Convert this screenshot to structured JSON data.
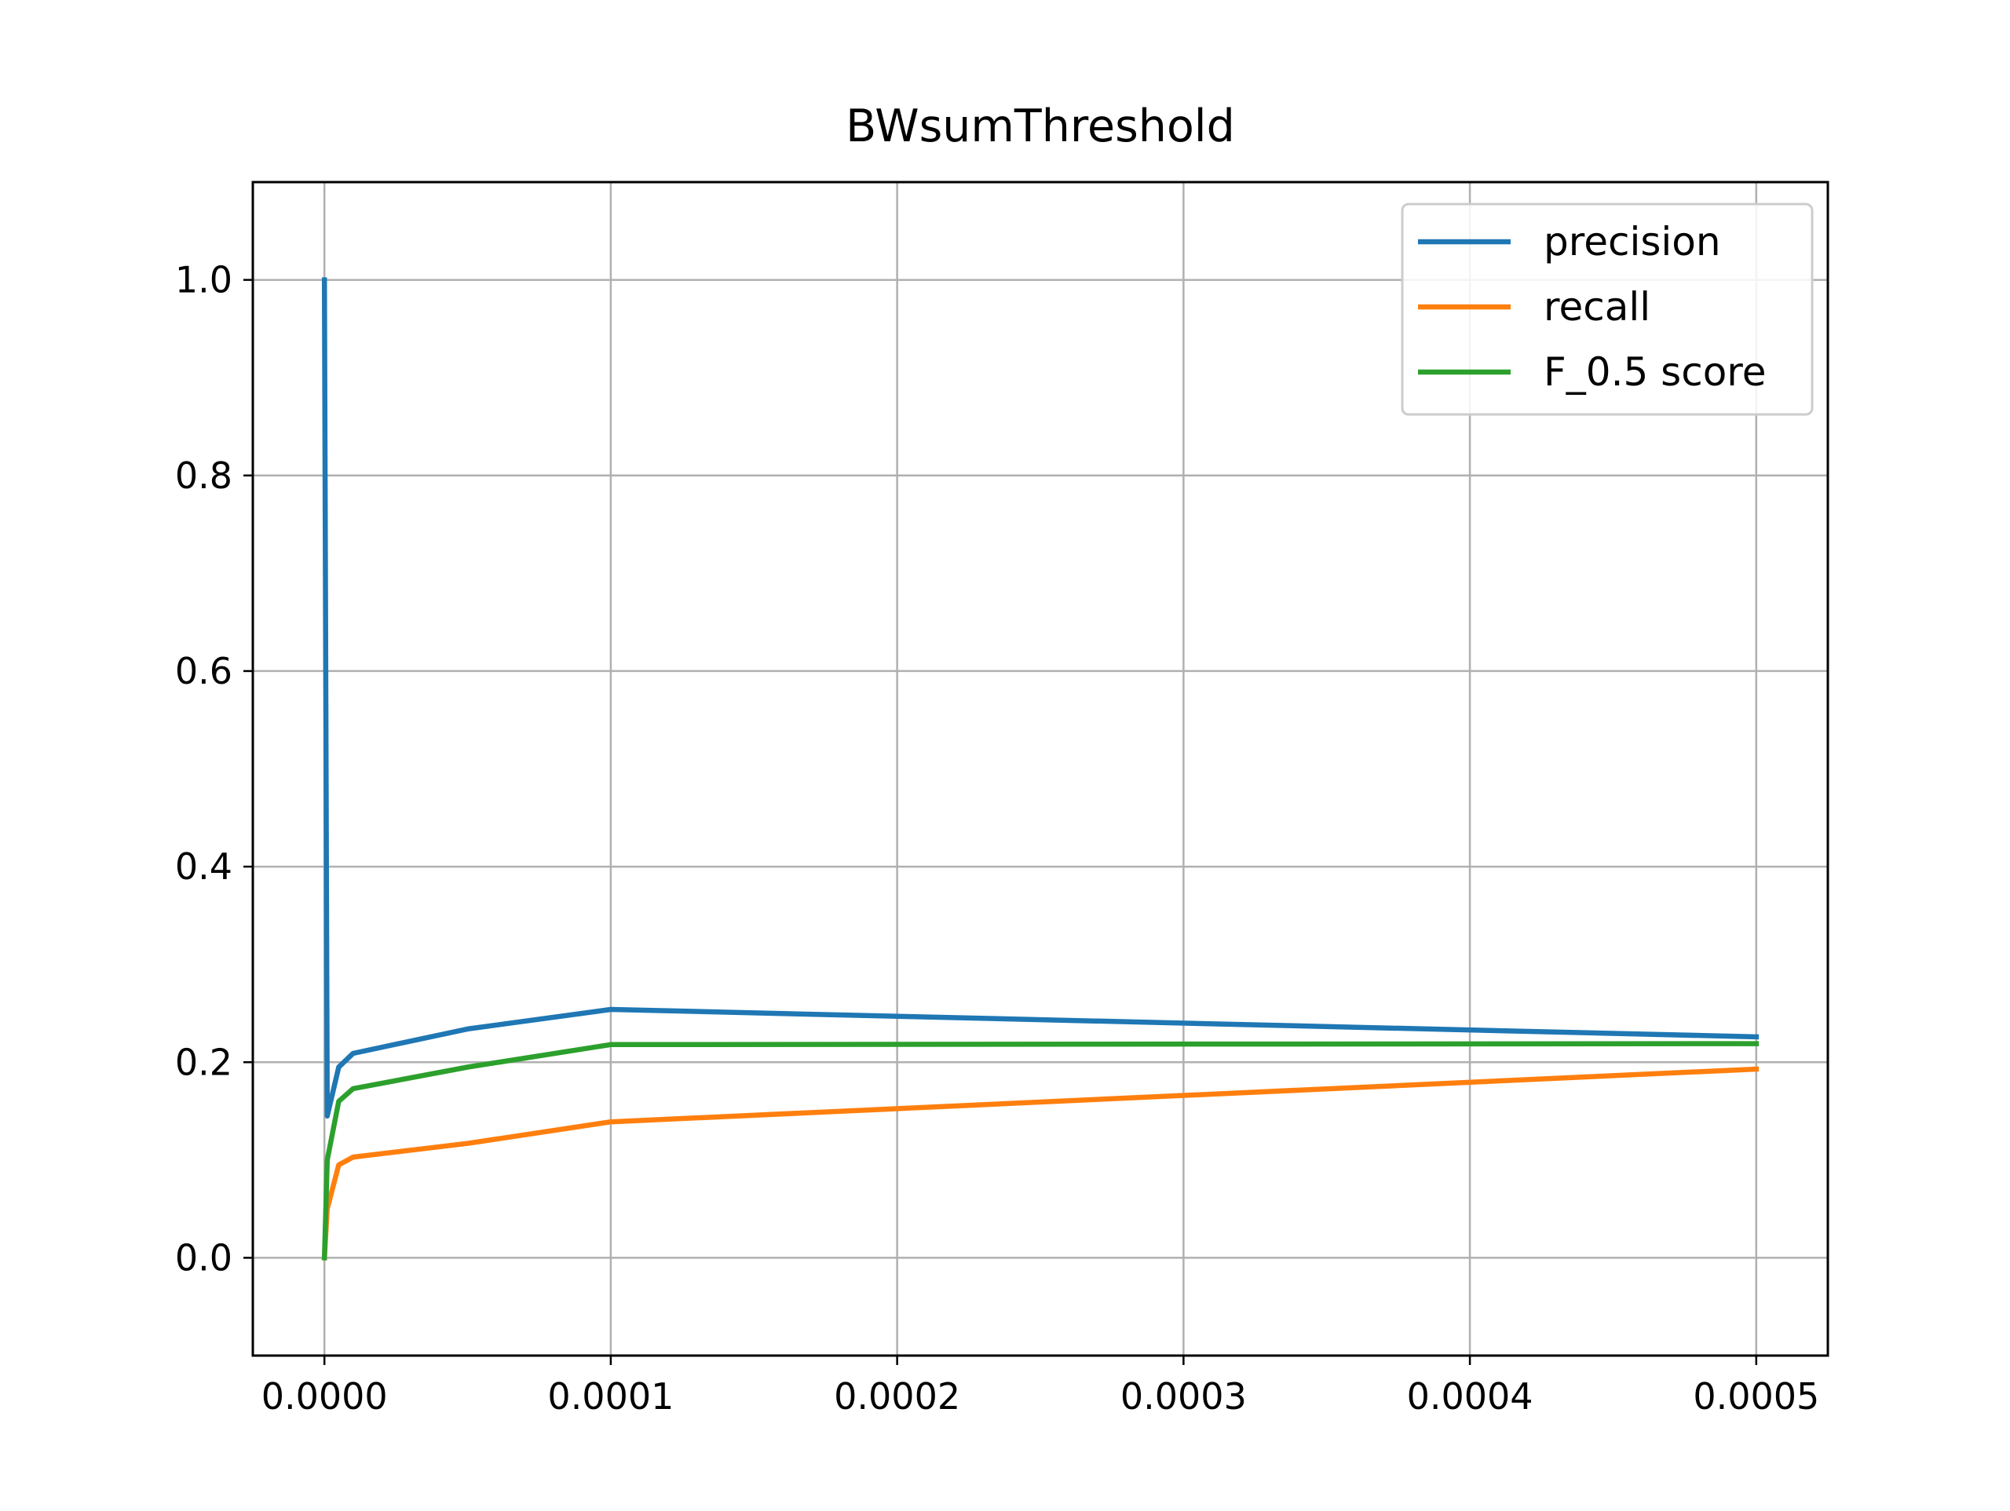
{
  "chart_data": {
    "type": "line",
    "title": "BWsumThreshold",
    "xlabel": "",
    "ylabel": "",
    "xlim": [
      -2.5e-05,
      0.000525
    ],
    "ylim": [
      -0.1,
      1.1
    ],
    "xticks": [
      0.0,
      0.0001,
      0.0002,
      0.0003,
      0.0004,
      0.0005
    ],
    "xtick_labels": [
      "0.0000",
      "0.0001",
      "0.0002",
      "0.0003",
      "0.0004",
      "0.0005"
    ],
    "yticks": [
      0.0,
      0.2,
      0.4,
      0.6,
      0.8,
      1.0
    ],
    "ytick_labels": [
      "0.0",
      "0.2",
      "0.4",
      "0.6",
      "0.8",
      "1.0"
    ],
    "grid": true,
    "legend_position": "top-right",
    "x": [
      0.0,
      1e-06,
      5e-06,
      1e-05,
      5e-05,
      0.0001,
      0.0005
    ],
    "series": [
      {
        "name": "precision",
        "color": "#1f77b4",
        "values": [
          1.0,
          0.145,
          0.195,
          0.209,
          0.234,
          0.254,
          0.226
        ]
      },
      {
        "name": "recall",
        "color": "#ff7f0e",
        "values": [
          0.0,
          0.05,
          0.095,
          0.103,
          0.117,
          0.139,
          0.193
        ]
      },
      {
        "name": "F_0.5 score",
        "color": "#2ca02c",
        "values": [
          0.0,
          0.1,
          0.16,
          0.173,
          0.195,
          0.218,
          0.219
        ]
      }
    ]
  }
}
